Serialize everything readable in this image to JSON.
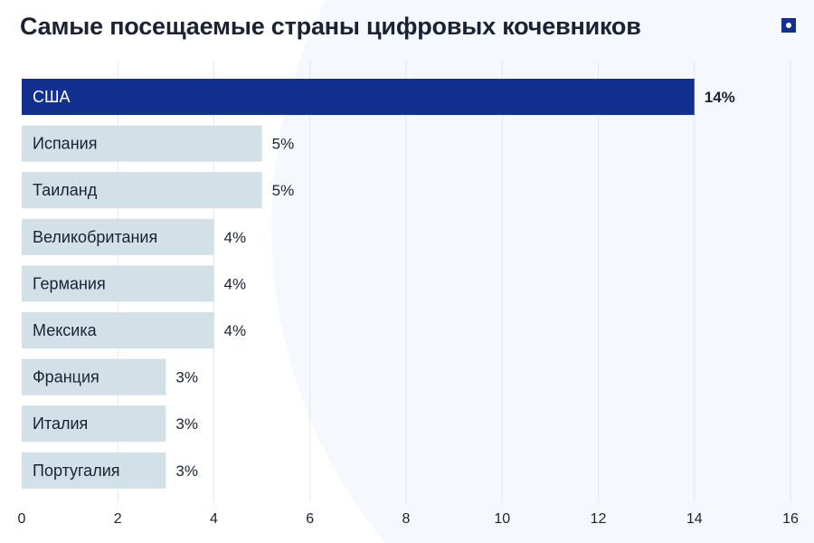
{
  "chart_data": {
    "type": "bar",
    "orientation": "horizontal",
    "title": "Самые посещаемые страны цифровых кочевников",
    "categories": [
      "США",
      "Испания",
      "Таиланд",
      "Великобритания",
      "Германия",
      "Мексика",
      "Франция",
      "Италия",
      "Португалия"
    ],
    "values": [
      14,
      5,
      5,
      4,
      4,
      4,
      3,
      3,
      3
    ],
    "data_labels": [
      "14%",
      "5%",
      "5%",
      "4%",
      "4%",
      "4%",
      "3%",
      "3%",
      "3%"
    ],
    "xlim": [
      0,
      16
    ],
    "xticks": [
      "0",
      "2",
      "4",
      "6",
      "8",
      "10",
      "12",
      "14",
      "16"
    ],
    "grid": true,
    "colors": {
      "highlight": "#12308f",
      "bar": "#d2e0e7",
      "highlight_text": "#ffffff",
      "text": "#1a2233",
      "grid": "#e3e7ee"
    }
  }
}
